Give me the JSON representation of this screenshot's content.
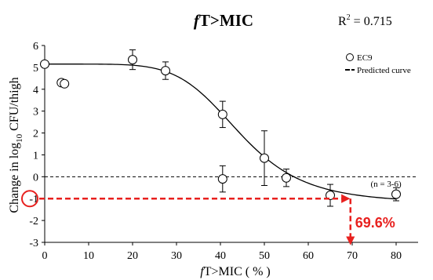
{
  "chart_data": {
    "type": "scatter",
    "title_italic": "f",
    "title_rest": "T>MIC",
    "r2_label": "R",
    "r2_sup": "2",
    "r2_value": " = 0.715",
    "xlabel_italic": "f",
    "xlabel_rest": "T>MIC ( % )",
    "ylabel_main": "Change in log",
    "ylabel_sub": "10",
    "ylabel_rest": " CFU/thigh",
    "xlim": [
      0,
      85
    ],
    "ylim": [
      -3,
      6
    ],
    "xticks": [
      "0",
      "10",
      "20",
      "30",
      "40",
      "50",
      "60",
      "70",
      "80"
    ],
    "xtick_values": [
      0,
      10,
      20,
      30,
      40,
      50,
      60,
      70,
      80
    ],
    "yticks": [
      "-3",
      "-2",
      "-1",
      "0",
      "1",
      "2",
      "3",
      "4",
      "5",
      "6"
    ],
    "ytick_values": [
      -3,
      -2,
      -1,
      0,
      1,
      2,
      3,
      4,
      5,
      6
    ],
    "grid": false,
    "legend_position": "top-right",
    "legend": {
      "points_label": "EC9",
      "curve_label": "Predicted curve"
    },
    "series": [
      {
        "name": "EC9",
        "points": [
          {
            "x": 0,
            "y": 5.15,
            "err": 0
          },
          {
            "x": 3.8,
            "y": 4.3,
            "err": 0
          },
          {
            "x": 4.5,
            "y": 4.25,
            "err": 0
          },
          {
            "x": 20,
            "y": 5.35,
            "err": 0.45
          },
          {
            "x": 27.5,
            "y": 4.85,
            "err": 0.4
          },
          {
            "x": 40.5,
            "y": 2.85,
            "err": 0.6
          },
          {
            "x": 40.5,
            "y": -0.1,
            "err": 0.6
          },
          {
            "x": 50,
            "y": 0.85,
            "err": 1.25
          },
          {
            "x": 55,
            "y": -0.05,
            "err": 0.4
          },
          {
            "x": 65,
            "y": -0.85,
            "err": 0.5
          },
          {
            "x": 80,
            "y": -0.8,
            "err": 0.3
          }
        ]
      }
    ],
    "curve": {
      "name": "Predicted curve",
      "emax": 6.35,
      "e0": 5.15,
      "ec50": 44.5,
      "hill": 6
    },
    "baseline_y": 0,
    "annotation": {
      "label": "69.6%",
      "x": 69.6,
      "y": -1,
      "color": "#e8211f"
    },
    "n_note": "(n = 3-6)"
  }
}
